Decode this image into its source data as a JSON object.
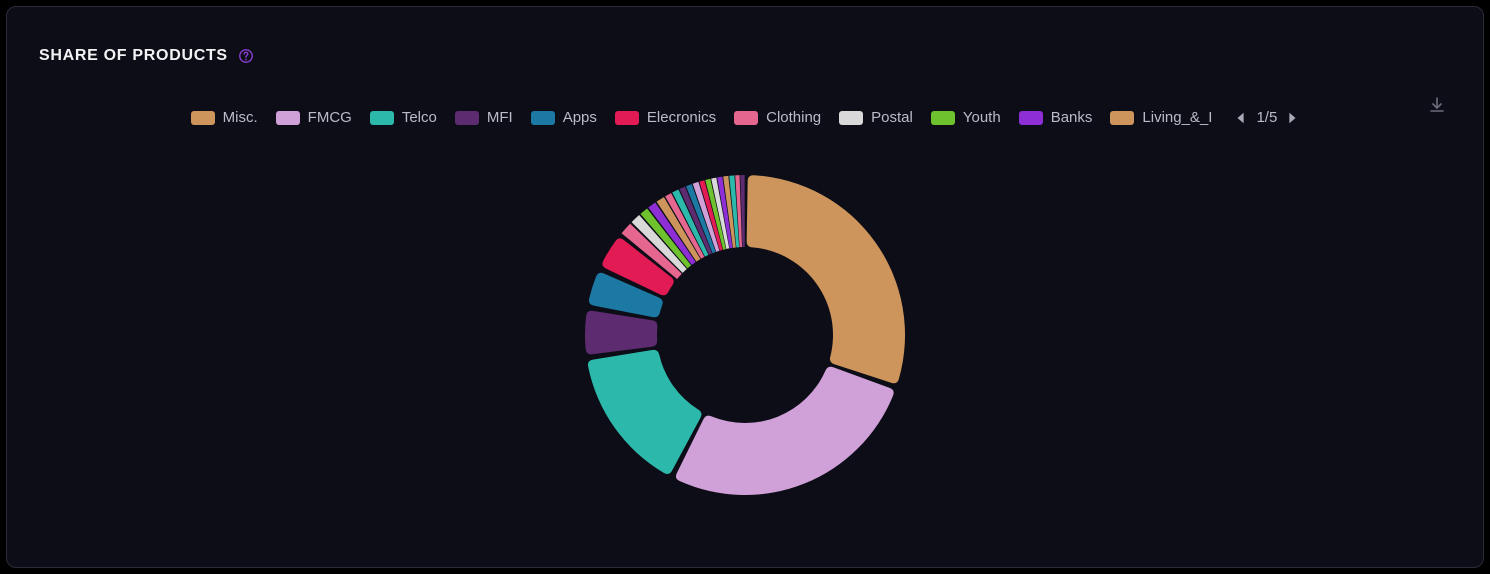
{
  "title": "SHARE OF PRODUCTS",
  "help_icon_color": "#8a3fd1",
  "download_icon_color": "#6d6f80",
  "nav_arrow_color": "#a9abb8",
  "background_color": "#0d0d17",
  "border_color": "#2a2c38",
  "legend_text_color": "#b9bbc7",
  "page": {
    "text": "1/5",
    "current": 1,
    "total": 5
  },
  "chart": {
    "type": "donut",
    "inner_radius_ratio": 0.55,
    "gap_deg": 2,
    "corner_radius": 6,
    "start_angle_deg": 0,
    "segments": [
      {
        "label": "Misc.",
        "value": 30.0,
        "color": "#cd955c"
      },
      {
        "label": "FMCG",
        "value": 27.0,
        "color": "#d0a0d8"
      },
      {
        "label": "Telco",
        "value": 15.0,
        "color": "#2cb9ac"
      },
      {
        "label": "MFI",
        "value": 5.0,
        "color": "#5d2b6f"
      },
      {
        "label": "Apps",
        "value": 4.0,
        "color": "#1b79a3"
      },
      {
        "label": "Elecronics",
        "value": 4.0,
        "color": "#e31b55"
      },
      {
        "label": "Clothing",
        "value": 1.5,
        "color": "#e5668f"
      },
      {
        "label": "Postal",
        "value": 1.2,
        "color": "#d9d9d9"
      },
      {
        "label": "Youth",
        "value": 1.0,
        "color": "#6dc22e"
      },
      {
        "label": "Banks",
        "value": 1.0,
        "color": "#8e2fd6"
      },
      {
        "label": "Living_&_I",
        "value": 1.0,
        "color": "#cd955c"
      }
    ],
    "remainder_slivers": [
      {
        "value": 0.8,
        "color": "#e5668f"
      },
      {
        "value": 0.8,
        "color": "#2cb9ac"
      },
      {
        "value": 0.7,
        "color": "#5d2b6f"
      },
      {
        "value": 0.7,
        "color": "#1b79a3"
      },
      {
        "value": 0.7,
        "color": "#d0a0d8"
      },
      {
        "value": 0.6,
        "color": "#e31b55"
      },
      {
        "value": 0.6,
        "color": "#6dc22e"
      },
      {
        "value": 0.6,
        "color": "#d9d9d9"
      },
      {
        "value": 0.6,
        "color": "#8e2fd6"
      },
      {
        "value": 0.6,
        "color": "#cd955c"
      },
      {
        "value": 0.6,
        "color": "#2cb9ac"
      },
      {
        "value": 0.5,
        "color": "#e5668f"
      },
      {
        "value": 0.5,
        "color": "#5d2b6f"
      }
    ]
  }
}
